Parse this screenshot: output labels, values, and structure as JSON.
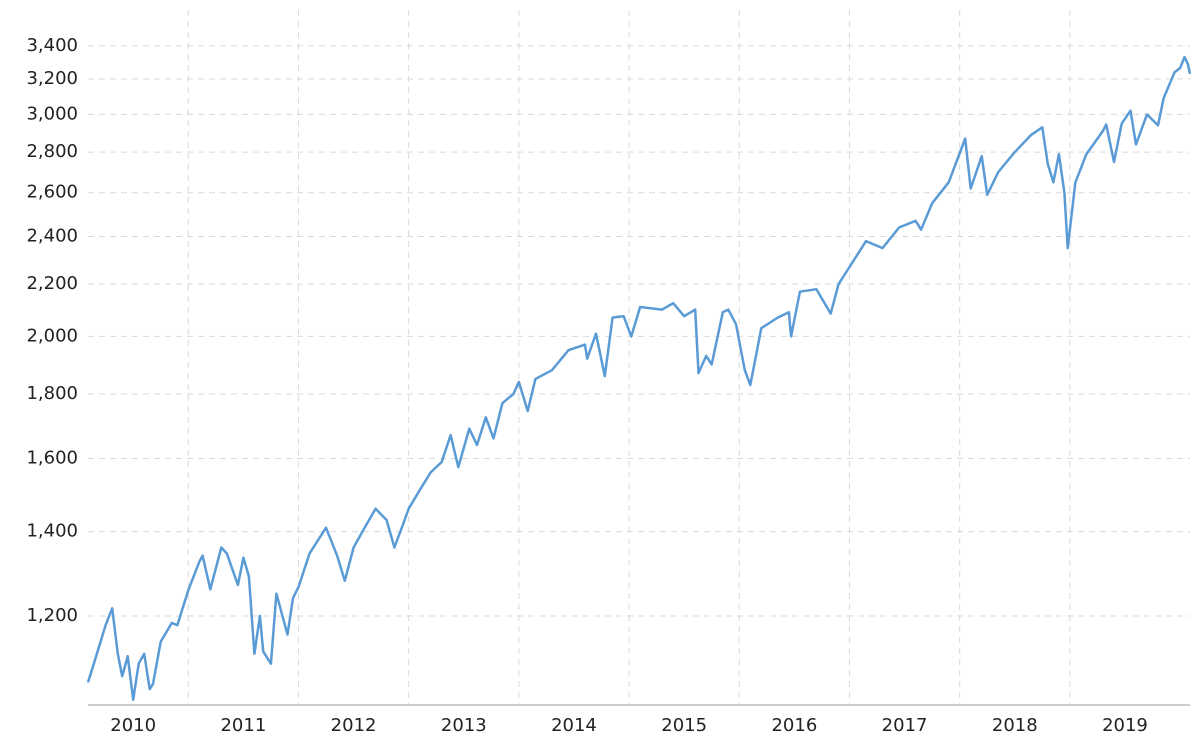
{
  "chart_data": {
    "type": "line",
    "x": [
      2010.09,
      2010.15,
      2010.25,
      2010.31,
      2010.36,
      2010.4,
      2010.45,
      2010.5,
      2010.55,
      2010.6,
      2010.65,
      2010.68,
      2010.75,
      2010.85,
      2010.9,
      2011.0,
      2011.1,
      2011.13,
      2011.2,
      2011.3,
      2011.35,
      2011.45,
      2011.5,
      2011.55,
      2011.6,
      2011.65,
      2011.68,
      2011.75,
      2011.8,
      2011.9,
      2011.95,
      2012.0,
      2012.1,
      2012.25,
      2012.35,
      2012.42,
      2012.5,
      2012.6,
      2012.7,
      2012.8,
      2012.87,
      2012.95,
      2013.0,
      2013.1,
      2013.2,
      2013.3,
      2013.38,
      2013.45,
      2013.55,
      2013.62,
      2013.7,
      2013.77,
      2013.85,
      2013.95,
      2014.0,
      2014.08,
      2014.15,
      2014.3,
      2014.45,
      2014.6,
      2014.62,
      2014.7,
      2014.78,
      2014.85,
      2014.95,
      2015.02,
      2015.1,
      2015.3,
      2015.4,
      2015.5,
      2015.6,
      2015.63,
      2015.7,
      2015.75,
      2015.85,
      2015.9,
      2015.97,
      2016.05,
      2016.1,
      2016.2,
      2016.35,
      2016.45,
      2016.47,
      2016.55,
      2016.7,
      2016.83,
      2016.9,
      2017.0,
      2017.15,
      2017.3,
      2017.45,
      2017.6,
      2017.65,
      2017.75,
      2017.9,
      2018.05,
      2018.1,
      2018.2,
      2018.25,
      2018.35,
      2018.5,
      2018.65,
      2018.75,
      2018.8,
      2018.85,
      2018.9,
      2018.95,
      2018.98,
      2019.05,
      2019.15,
      2019.3,
      2019.33,
      2019.4,
      2019.47,
      2019.55,
      2019.6,
      2019.7,
      2019.8,
      2019.85,
      2019.95,
      2020.0,
      2020.04,
      2020.07,
      2020.09
    ],
    "series": [
      {
        "color": "#5b9bd5",
        "values": [
          1063,
          1105,
          1180,
          1217,
          1120,
          1075,
          1115,
          1030,
          1100,
          1120,
          1050,
          1060,
          1145,
          1185,
          1180,
          1258,
          1325,
          1340,
          1260,
          1360,
          1345,
          1270,
          1335,
          1290,
          1120,
          1200,
          1125,
          1100,
          1250,
          1160,
          1240,
          1265,
          1345,
          1410,
          1340,
          1280,
          1360,
          1410,
          1460,
          1430,
          1360,
          1420,
          1460,
          1510,
          1560,
          1590,
          1670,
          1575,
          1690,
          1640,
          1725,
          1660,
          1770,
          1800,
          1840,
          1745,
          1850,
          1880,
          1950,
          1970,
          1920,
          2010,
          1860,
          2070,
          2075,
          2000,
          2110,
          2100,
          2125,
          2075,
          2100,
          1870,
          1930,
          1900,
          2090,
          2100,
          2045,
          1880,
          1830,
          2030,
          2070,
          2090,
          2000,
          2170,
          2180,
          2085,
          2200,
          2270,
          2380,
          2350,
          2440,
          2470,
          2430,
          2550,
          2650,
          2870,
          2620,
          2780,
          2590,
          2700,
          2800,
          2890,
          2930,
          2740,
          2650,
          2790,
          2600,
          2350,
          2650,
          2790,
          2910,
          2945,
          2750,
          2950,
          3020,
          2840,
          3000,
          2940,
          3090,
          3240,
          3265,
          3330,
          3290,
          3230
        ]
      }
    ],
    "xlim": [
      2010.09,
      2020.09
    ],
    "xticks": [
      2010,
      2011,
      2012,
      2013,
      2014,
      2015,
      2016,
      2017,
      2018,
      2019
    ],
    "ylim": [
      1020,
      3630
    ],
    "ylog": true,
    "yticks": [
      {
        "value": 1200,
        "label": "1,200"
      },
      {
        "value": 1400,
        "label": "1,400"
      },
      {
        "value": 1600,
        "label": "1,600"
      },
      {
        "value": 1800,
        "label": "1,800"
      },
      {
        "value": 2000,
        "label": "2,000"
      },
      {
        "value": 2200,
        "label": "2,200"
      },
      {
        "value": 2400,
        "label": "2,400"
      },
      {
        "value": 2600,
        "label": "2,600"
      },
      {
        "value": 2800,
        "label": "2,800"
      },
      {
        "value": 3000,
        "label": "3,000"
      },
      {
        "value": 3200,
        "label": "3,200"
      },
      {
        "value": 3400,
        "label": "3,400"
      }
    ],
    "grid": true
  }
}
